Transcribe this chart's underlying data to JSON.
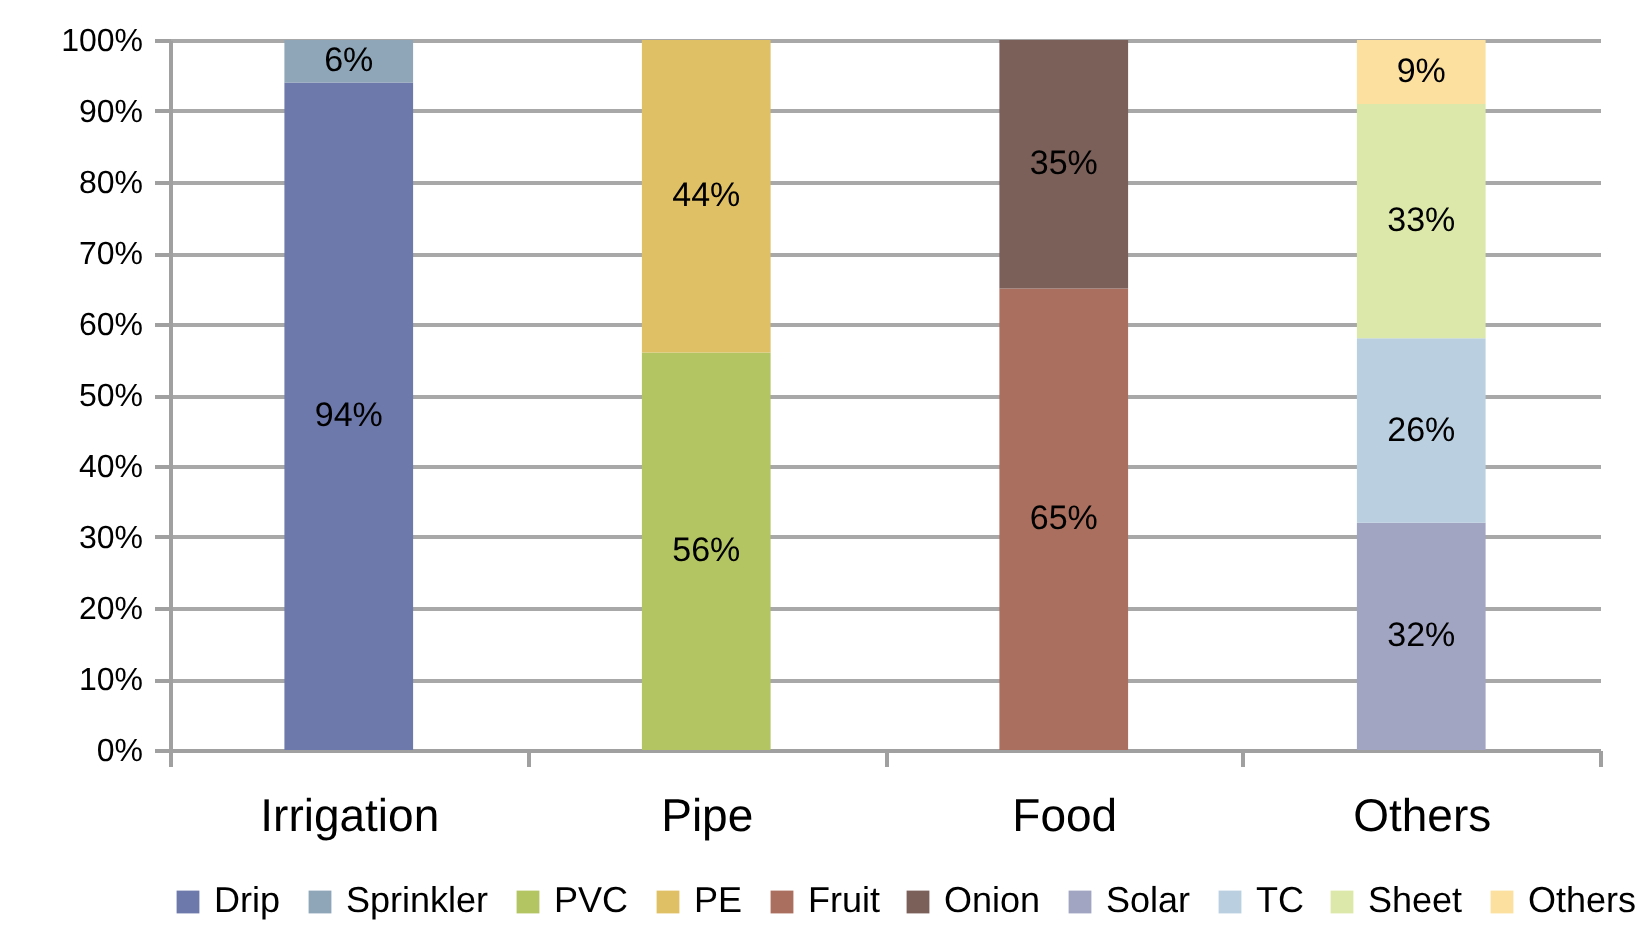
{
  "chart_data": {
    "type": "bar",
    "stacked": true,
    "categories": [
      "Irrigation",
      "Pipe",
      "Food",
      "Others"
    ],
    "series": [
      {
        "name": "Drip",
        "color": "#6e79ab",
        "values": [
          94,
          null,
          null,
          null
        ],
        "value_labels": [
          "94%",
          null,
          null,
          null
        ]
      },
      {
        "name": "Sprinkler",
        "color": "#8ea6b8",
        "values": [
          6,
          null,
          null,
          null
        ],
        "value_labels": [
          "6%",
          null,
          null,
          null
        ]
      },
      {
        "name": "PVC",
        "color": "#b3c462",
        "values": [
          null,
          56,
          null,
          null
        ],
        "value_labels": [
          null,
          "56%",
          null,
          null
        ]
      },
      {
        "name": "PE",
        "color": "#e0c064",
        "values": [
          null,
          44,
          null,
          null
        ],
        "value_labels": [
          null,
          "44%",
          null,
          null
        ]
      },
      {
        "name": "Fruit",
        "color": "#aa6f5e",
        "values": [
          null,
          null,
          65,
          null
        ],
        "value_labels": [
          null,
          null,
          "65%",
          null
        ]
      },
      {
        "name": "Onion",
        "color": "#7b5f59",
        "values": [
          null,
          null,
          35,
          null
        ],
        "value_labels": [
          null,
          null,
          "35%",
          null
        ]
      },
      {
        "name": "Solar",
        "color": "#a1a5c2",
        "values": [
          null,
          null,
          null,
          32
        ],
        "value_labels": [
          null,
          null,
          null,
          "32%"
        ]
      },
      {
        "name": "TC",
        "color": "#bacfe0",
        "values": [
          null,
          null,
          null,
          26
        ],
        "value_labels": [
          null,
          null,
          null,
          "26%"
        ]
      },
      {
        "name": "Sheet",
        "color": "#dbe8a9",
        "values": [
          null,
          null,
          null,
          33
        ],
        "value_labels": [
          null,
          null,
          null,
          "33%"
        ]
      },
      {
        "name": "Others",
        "color": "#fbe0a0",
        "values": [
          null,
          null,
          null,
          9
        ],
        "value_labels": [
          null,
          null,
          null,
          "9%"
        ]
      }
    ],
    "ylim": [
      0,
      100
    ],
    "yticks": [
      {
        "value": 0,
        "label": "0%"
      },
      {
        "value": 10,
        "label": "10%"
      },
      {
        "value": 20,
        "label": "20%"
      },
      {
        "value": 30,
        "label": "30%"
      },
      {
        "value": 40,
        "label": "40%"
      },
      {
        "value": 50,
        "label": "50%"
      },
      {
        "value": 60,
        "label": "60%"
      },
      {
        "value": 70,
        "label": "70%"
      },
      {
        "value": 80,
        "label": "80%"
      },
      {
        "value": 90,
        "label": "90%"
      },
      {
        "value": 100,
        "label": "100%"
      }
    ],
    "grid": "y",
    "legend": "bottom"
  }
}
